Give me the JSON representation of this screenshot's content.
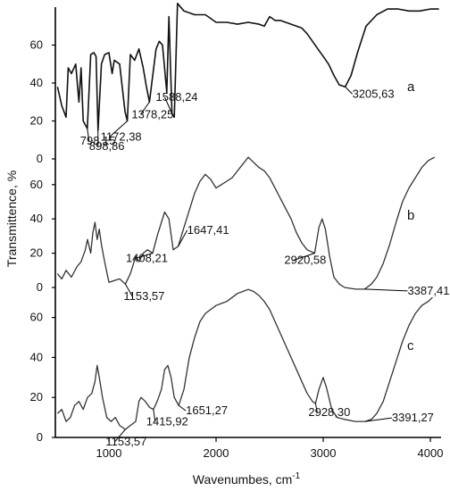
{
  "chart_data": {
    "type": "line",
    "xlabel": "Wavenumbes, cm",
    "xlabel_superscript": "-1",
    "ylabel": "Transmittence, %",
    "xlim": [
      500,
      4100
    ],
    "x_ticks": [
      "1000",
      "2000",
      "3000",
      "4000"
    ],
    "x_tick_values": [
      1000,
      2000,
      3000,
      4000
    ],
    "panels": [
      {
        "label": "a",
        "ylim": [
          0,
          80
        ],
        "y_ticks": [
          "0",
          "20",
          "40",
          "60"
        ],
        "y_tick_values": [
          0,
          20,
          40,
          60
        ],
        "points": [
          [
            520,
            38
          ],
          [
            560,
            28
          ],
          [
            600,
            22
          ],
          [
            620,
            48
          ],
          [
            650,
            45
          ],
          [
            690,
            50
          ],
          [
            720,
            30
          ],
          [
            740,
            48
          ],
          [
            760,
            20
          ],
          [
            798,
            16
          ],
          [
            830,
            55
          ],
          [
            860,
            56
          ],
          [
            880,
            54
          ],
          [
            898,
            15
          ],
          [
            930,
            50
          ],
          [
            960,
            55
          ],
          [
            1000,
            56
          ],
          [
            1030,
            45
          ],
          [
            1050,
            52
          ],
          [
            1100,
            50
          ],
          [
            1150,
            25
          ],
          [
            1172,
            20
          ],
          [
            1200,
            55
          ],
          [
            1240,
            52
          ],
          [
            1280,
            58
          ],
          [
            1320,
            48
          ],
          [
            1350,
            38
          ],
          [
            1378,
            30
          ],
          [
            1400,
            40
          ],
          [
            1440,
            58
          ],
          [
            1470,
            62
          ],
          [
            1500,
            60
          ],
          [
            1540,
            35
          ],
          [
            1560,
            75
          ],
          [
            1588,
            24
          ],
          [
            1610,
            22
          ],
          [
            1640,
            82
          ],
          [
            1700,
            78
          ],
          [
            1800,
            76
          ],
          [
            1900,
            76
          ],
          [
            2000,
            72
          ],
          [
            2100,
            72
          ],
          [
            2200,
            71
          ],
          [
            2300,
            72
          ],
          [
            2400,
            71
          ],
          [
            2450,
            70
          ],
          [
            2500,
            75
          ],
          [
            2550,
            73
          ],
          [
            2600,
            73
          ],
          [
            2650,
            72
          ],
          [
            2700,
            71
          ],
          [
            2750,
            70
          ],
          [
            2800,
            69
          ],
          [
            2850,
            66
          ],
          [
            2900,
            62
          ],
          [
            2950,
            58
          ],
          [
            3000,
            54
          ],
          [
            3050,
            50
          ],
          [
            3100,
            44
          ],
          [
            3150,
            39
          ],
          [
            3205,
            38
          ],
          [
            3260,
            44
          ],
          [
            3320,
            56
          ],
          [
            3400,
            70
          ],
          [
            3500,
            76
          ],
          [
            3600,
            79
          ],
          [
            3700,
            79
          ],
          [
            3800,
            78
          ],
          [
            3900,
            78
          ],
          [
            4000,
            79
          ],
          [
            4080,
            79
          ]
        ],
        "annotations": [
          {
            "text": "798,15",
            "x": 798,
            "y": 16
          },
          {
            "text": "898,86",
            "x": 898,
            "y": 15
          },
          {
            "text": "1172,38",
            "x": 1172,
            "y": 20
          },
          {
            "text": "1378,25",
            "x": 1378,
            "y": 30
          },
          {
            "text": "1588,24",
            "x": 1588,
            "y": 24
          },
          {
            "text": "3205,63",
            "x": 3205,
            "y": 38
          }
        ]
      },
      {
        "label": "b",
        "ylim": [
          0,
          75
        ],
        "y_ticks": [
          "0",
          "20",
          "40",
          "60"
        ],
        "y_tick_values": [
          0,
          20,
          40,
          60
        ],
        "points": [
          [
            520,
            8
          ],
          [
            560,
            5
          ],
          [
            600,
            10
          ],
          [
            650,
            6
          ],
          [
            700,
            12
          ],
          [
            740,
            15
          ],
          [
            780,
            22
          ],
          [
            800,
            28
          ],
          [
            830,
            20
          ],
          [
            850,
            32
          ],
          [
            870,
            38
          ],
          [
            890,
            28
          ],
          [
            910,
            34
          ],
          [
            930,
            25
          ],
          [
            960,
            15
          ],
          [
            1000,
            3
          ],
          [
            1050,
            4
          ],
          [
            1100,
            5
          ],
          [
            1153,
            2
          ],
          [
            1200,
            8
          ],
          [
            1250,
            18
          ],
          [
            1280,
            15
          ],
          [
            1320,
            20
          ],
          [
            1360,
            22
          ],
          [
            1408,
            20
          ],
          [
            1450,
            30
          ],
          [
            1490,
            38
          ],
          [
            1520,
            44
          ],
          [
            1560,
            40
          ],
          [
            1600,
            22
          ],
          [
            1647,
            24
          ],
          [
            1700,
            35
          ],
          [
            1750,
            45
          ],
          [
            1800,
            55
          ],
          [
            1850,
            62
          ],
          [
            1900,
            66
          ],
          [
            1950,
            63
          ],
          [
            2000,
            58
          ],
          [
            2050,
            60
          ],
          [
            2100,
            62
          ],
          [
            2150,
            64
          ],
          [
            2200,
            68
          ],
          [
            2250,
            72
          ],
          [
            2300,
            76
          ],
          [
            2350,
            73
          ],
          [
            2400,
            70
          ],
          [
            2450,
            68
          ],
          [
            2500,
            64
          ],
          [
            2550,
            58
          ],
          [
            2600,
            52
          ],
          [
            2650,
            46
          ],
          [
            2700,
            40
          ],
          [
            2750,
            32
          ],
          [
            2800,
            26
          ],
          [
            2850,
            22
          ],
          [
            2920,
            20
          ],
          [
            2960,
            35
          ],
          [
            2990,
            40
          ],
          [
            3020,
            34
          ],
          [
            3060,
            18
          ],
          [
            3100,
            6
          ],
          [
            3150,
            2
          ],
          [
            3200,
            0
          ],
          [
            3300,
            -1
          ],
          [
            3387,
            -1
          ],
          [
            3450,
            2
          ],
          [
            3500,
            6
          ],
          [
            3560,
            14
          ],
          [
            3620,
            25
          ],
          [
            3680,
            38
          ],
          [
            3740,
            50
          ],
          [
            3800,
            58
          ],
          [
            3860,
            64
          ],
          [
            3920,
            70
          ],
          [
            3980,
            74
          ],
          [
            4040,
            76
          ]
        ],
        "annotations": [
          {
            "text": "1153,57",
            "x": 1153,
            "y": 2
          },
          {
            "text": "1408,21",
            "x": 1408,
            "y": 20
          },
          {
            "text": "1647,41",
            "x": 1647,
            "y": 24
          },
          {
            "text": "2920,58",
            "x": 2920,
            "y": 20
          },
          {
            "text": "3387,41",
            "x": 3387,
            "y": -1
          }
        ]
      },
      {
        "label": "c",
        "ylim": [
          0,
          75
        ],
        "y_ticks": [
          "0",
          "20",
          "40",
          "60"
        ],
        "y_tick_values": [
          0,
          20,
          40,
          60
        ],
        "points": [
          [
            520,
            12
          ],
          [
            560,
            14
          ],
          [
            600,
            8
          ],
          [
            640,
            10
          ],
          [
            680,
            16
          ],
          [
            720,
            18
          ],
          [
            760,
            14
          ],
          [
            800,
            20
          ],
          [
            840,
            22
          ],
          [
            870,
            28
          ],
          [
            890,
            36
          ],
          [
            910,
            30
          ],
          [
            940,
            20
          ],
          [
            980,
            10
          ],
          [
            1020,
            8
          ],
          [
            1060,
            10
          ],
          [
            1100,
            6
          ],
          [
            1153,
            4
          ],
          [
            1200,
            6
          ],
          [
            1250,
            8
          ],
          [
            1280,
            18
          ],
          [
            1300,
            20
          ],
          [
            1340,
            18
          ],
          [
            1380,
            15
          ],
          [
            1415,
            14
          ],
          [
            1450,
            18
          ],
          [
            1490,
            24
          ],
          [
            1520,
            34
          ],
          [
            1550,
            36
          ],
          [
            1580,
            30
          ],
          [
            1610,
            20
          ],
          [
            1651,
            16
          ],
          [
            1700,
            24
          ],
          [
            1750,
            40
          ],
          [
            1800,
            50
          ],
          [
            1850,
            58
          ],
          [
            1900,
            62
          ],
          [
            1950,
            64
          ],
          [
            2000,
            66
          ],
          [
            2050,
            67
          ],
          [
            2100,
            68
          ],
          [
            2150,
            70
          ],
          [
            2200,
            72
          ],
          [
            2250,
            73
          ],
          [
            2300,
            74
          ],
          [
            2350,
            73
          ],
          [
            2400,
            71
          ],
          [
            2450,
            68
          ],
          [
            2500,
            64
          ],
          [
            2550,
            58
          ],
          [
            2600,
            52
          ],
          [
            2650,
            46
          ],
          [
            2700,
            40
          ],
          [
            2750,
            34
          ],
          [
            2800,
            28
          ],
          [
            2850,
            22
          ],
          [
            2900,
            18
          ],
          [
            2928,
            17
          ],
          [
            2960,
            24
          ],
          [
            3000,
            30
          ],
          [
            3030,
            25
          ],
          [
            3080,
            14
          ],
          [
            3130,
            10
          ],
          [
            3200,
            9
          ],
          [
            3300,
            8
          ],
          [
            3391,
            8
          ],
          [
            3450,
            9
          ],
          [
            3500,
            12
          ],
          [
            3560,
            18
          ],
          [
            3620,
            28
          ],
          [
            3680,
            38
          ],
          [
            3740,
            48
          ],
          [
            3800,
            56
          ],
          [
            3860,
            62
          ],
          [
            3920,
            66
          ],
          [
            3980,
            68
          ],
          [
            4020,
            70
          ]
        ],
        "annotations": [
          {
            "text": "1153,57",
            "x": 1153,
            "y": 4
          },
          {
            "text": "1415,92",
            "x": 1415,
            "y": 14
          },
          {
            "text": "1651,27",
            "x": 1651,
            "y": 16
          },
          {
            "text": "2928,30",
            "x": 2928,
            "y": 17
          },
          {
            "text": "3391,27",
            "x": 3391,
            "y": 8
          }
        ]
      }
    ]
  }
}
